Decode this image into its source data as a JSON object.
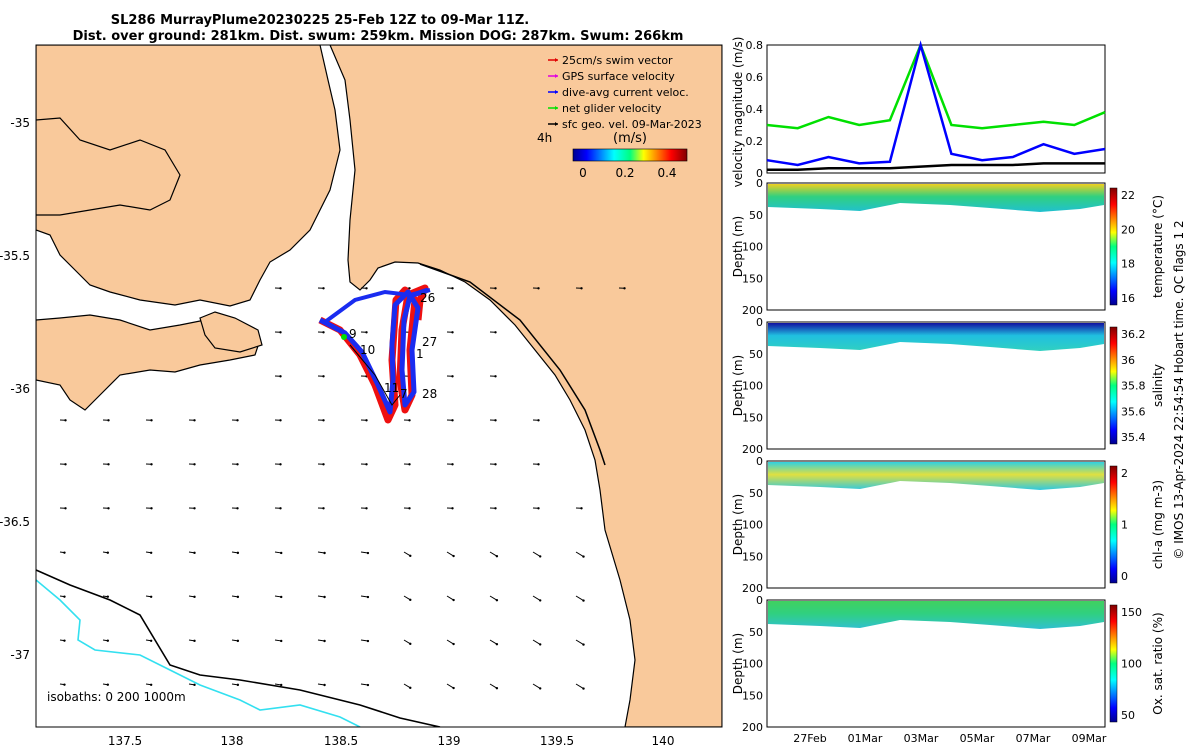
{
  "title_line1": "SL286 MurrayPlume20230225 25-Feb 12Z to 09-Mar 11Z.",
  "title_line2": "Dist. over ground: 281km. Dist. swum: 259km. Mission DOG: 287km. Swum: 266km",
  "map": {
    "x_ticks": [
      "137.5",
      "138",
      "138.5",
      "139",
      "139.5",
      "140"
    ],
    "y_ticks": [
      "-35",
      "-35.5",
      "-36",
      "-36.5",
      "-37"
    ],
    "isobath_label": "isobaths: 0   200  1000m",
    "legend": [
      {
        "label": "25cm/s swim vector",
        "color": "#e00000"
      },
      {
        "label": "GPS surface velocity",
        "color": "#e000e0"
      },
      {
        "label": "dive-avg current veloc.",
        "color": "#0000ff"
      },
      {
        "label": "net glider velocity",
        "color": "#00e000"
      },
      {
        "label": "sfc geo. vel. 09-Mar-2023",
        "color": "#000000"
      }
    ],
    "colorbar_label": "(m/s)",
    "colorbar_ticks": [
      "0",
      "0.2",
      "0.4"
    ],
    "time_label": "4h",
    "day_labels": [
      "26",
      "27",
      "1",
      "9",
      "10",
      "11",
      "7",
      "28"
    ],
    "colors": {
      "land": "#f9c99b",
      "shelf": "#000000",
      "isobath_deep": "#33e0f0"
    }
  },
  "chart_data": [
    {
      "type": "line",
      "ylabel": "velocity magnitude (m/s)",
      "ylim": [
        0,
        0.8
      ],
      "y_ticks": [
        "0",
        "0.2",
        "0.4",
        "0.6",
        "0.8"
      ],
      "x": [
        "26Feb",
        "27Feb",
        "28Feb",
        "01Mar",
        "02Mar",
        "03Mar",
        "04Mar",
        "05Mar",
        "06Mar",
        "07Mar",
        "08Mar",
        "09Mar"
      ],
      "series": [
        {
          "name": "net glider velocity",
          "color": "#00e000",
          "values": [
            0.3,
            0.28,
            0.35,
            0.3,
            0.33,
            0.8,
            0.3,
            0.28,
            0.3,
            0.32,
            0.3,
            0.38
          ]
        },
        {
          "name": "dive-avg current veloc.",
          "color": "#0000ff",
          "values": [
            0.08,
            0.05,
            0.1,
            0.06,
            0.07,
            0.8,
            0.12,
            0.08,
            0.1,
            0.18,
            0.12,
            0.15
          ]
        },
        {
          "name": "sfc geo. vel.",
          "color": "#000000",
          "values": [
            0.02,
            0.02,
            0.03,
            0.03,
            0.03,
            0.04,
            0.05,
            0.05,
            0.05,
            0.06,
            0.06,
            0.06
          ]
        }
      ]
    },
    {
      "type": "heatmap",
      "ylabel": "Depth (m)",
      "colorbar_label": "temperature (°C)",
      "y_ticks": [
        "0",
        "50",
        "100",
        "150",
        "200"
      ],
      "colorbar_ticks": [
        "16",
        "18",
        "20",
        "22"
      ]
    },
    {
      "type": "heatmap",
      "ylabel": "Depth (m)",
      "colorbar_label": "salinity",
      "y_ticks": [
        "0",
        "50",
        "100",
        "150",
        "200"
      ],
      "colorbar_ticks": [
        "35.4",
        "35.6",
        "35.8",
        "36",
        "36.2"
      ]
    },
    {
      "type": "heatmap",
      "ylabel": "Depth (m)",
      "colorbar_label": "chl-a (mg m-3)",
      "y_ticks": [
        "0",
        "50",
        "100",
        "150",
        "200"
      ],
      "colorbar_ticks": [
        "0",
        "1",
        "2"
      ]
    },
    {
      "type": "heatmap",
      "ylabel": "Depth (m)",
      "colorbar_label": "Ox. sat. ratio (%)",
      "y_ticks": [
        "0",
        "50",
        "100",
        "150",
        "200"
      ],
      "colorbar_ticks": [
        "50",
        "100",
        "150"
      ]
    }
  ],
  "x_date_ticks": [
    "27Feb",
    "01Mar",
    "03Mar",
    "05Mar",
    "07Mar",
    "09Mar"
  ],
  "footer": "© IMOS 13-Apr-2024 22:54:54 Hobart time. QC flags 1  2"
}
